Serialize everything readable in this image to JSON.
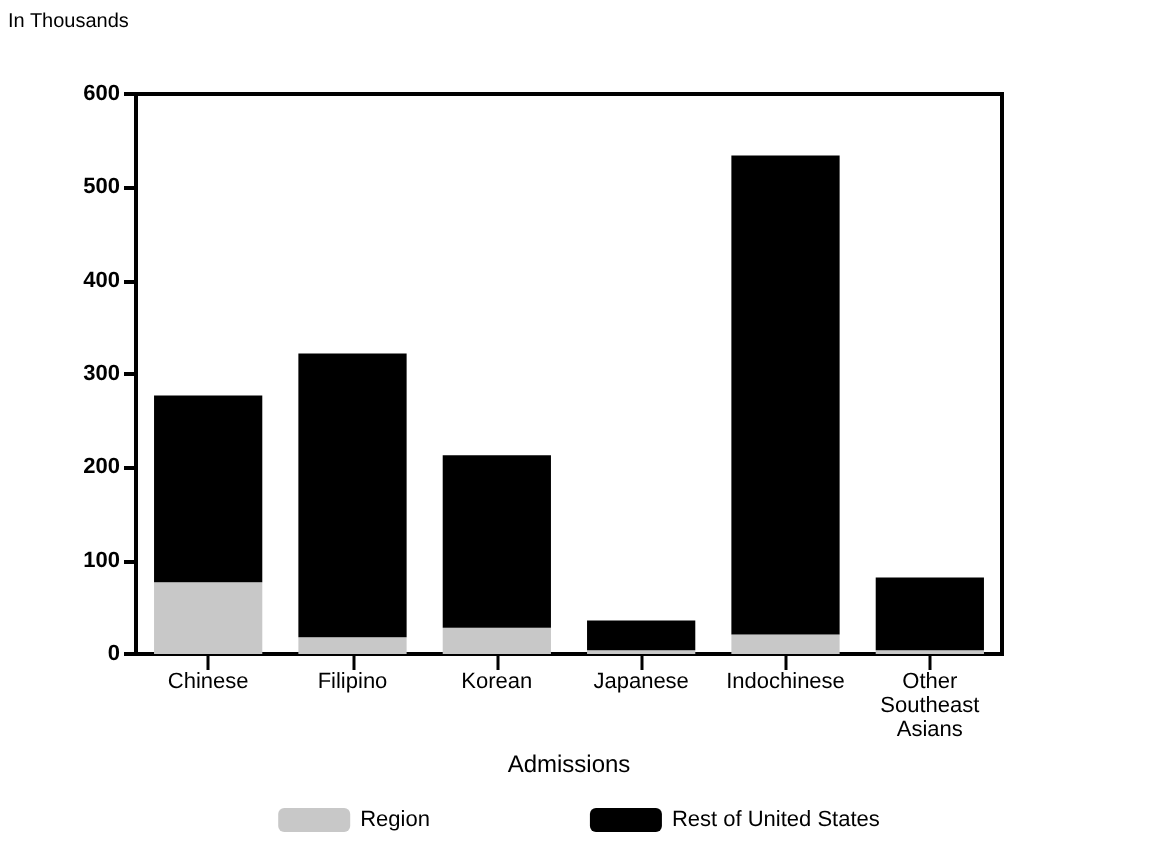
{
  "chart_data": {
    "type": "bar",
    "ylabel": "In Thousands",
    "xlabel": "Admissions",
    "stacked": true,
    "categories": [
      "Chinese",
      "Filipino",
      "Korean",
      "Japanese",
      "Indochinese",
      "Other\nSoutheast\nAsians"
    ],
    "series": [
      {
        "name": "Region",
        "color": "#c8c8c8",
        "values": [
          77,
          18,
          28,
          4,
          21,
          4
        ]
      },
      {
        "name": "Rest of United States",
        "color": "#000000",
        "values": [
          200,
          304,
          185,
          32,
          513,
          78
        ]
      }
    ],
    "ylim": [
      0,
      600
    ],
    "yticks": [
      0,
      100,
      200,
      300,
      400,
      500,
      600
    ],
    "grid": false,
    "legend": "bottom"
  }
}
